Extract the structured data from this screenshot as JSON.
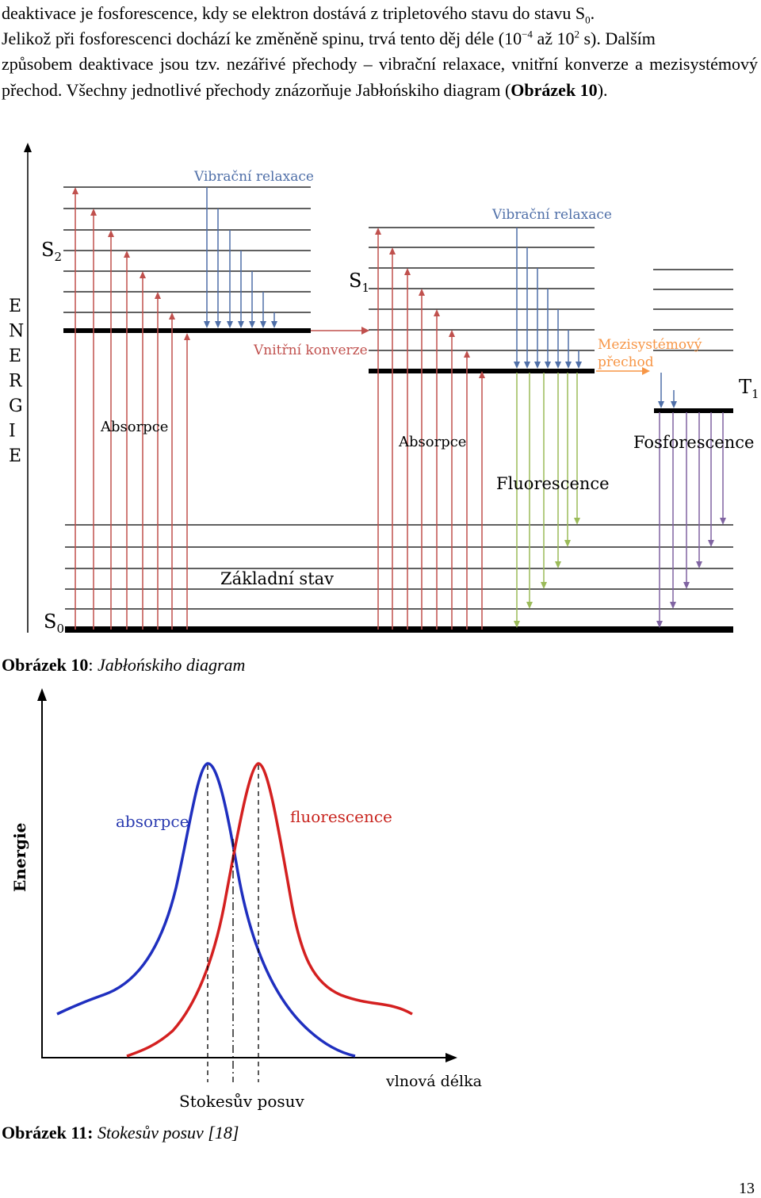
{
  "paragraph": {
    "line1_a": "deaktivace je fosforescence, kdy se elektron dostává z tripletového stavu do stavu S",
    "line1_sub": "0",
    "line1_b": ".",
    "line2_a": "Jelikož při fosforescenci dochází ke změněně spinu, trvá tento děj déle (10",
    "line2_sup1": "−4",
    "line2_b": " až 10",
    "line2_sup2": "2",
    "line2_c": " s). Dalším",
    "rest": "způsobem deaktivace jsou tzv. nezářivé přechody – vibrační relaxace, vnitřní konverze a mezisystémový přechod. Všechny jednotlivé přechody znázorňuje Jabłońskiho diagram (",
    "ref_bold": "Obrázek 10",
    "rest_end": ")."
  },
  "figure10": {
    "caption_label": "Obrázek 10",
    "caption_sep": ": ",
    "caption_text": "Jabłońskiho diagram",
    "axis_label": "ENERGIE",
    "axis_letters": [
      "E",
      "N",
      "E",
      "R",
      "G",
      "I",
      "E"
    ],
    "labels": {
      "s2": "S",
      "s2_sub": "2",
      "s1": "S",
      "s1_sub": "1",
      "s0": "S",
      "s0_sub": "0",
      "t1": "T",
      "t1_sub": "1",
      "vib_relax_1": "Vibrační relaxace",
      "vib_relax_2": "Vibrační relaxace",
      "internal_conv": "Vnitřní konverze",
      "isc_line1": "Mezisystémový",
      "isc_line2": "přechod",
      "absorption_1": "Absorpce",
      "absorption_2": "Absorpce",
      "fluorescence": "Fluorescence",
      "phosphorescence": "Fosforescence",
      "ground_state": "Základní stav"
    },
    "colors": {
      "absorption": "#c0504d",
      "vibrational": "#4f6fa8",
      "fluorescence": "#9bbb59",
      "phosphorescence": "#8064a2",
      "isc": "#f79646",
      "label_blue": "#4f6fa8",
      "label_red": "#c0504d",
      "label_orange": "#f79646"
    }
  },
  "figure11": {
    "caption_label": "Obrázek 11:",
    "caption_text": "Stokesův posuv [18]",
    "y_label": "Energie",
    "x_label": "vlnová délka",
    "absorption_label": "absorpce",
    "fluorescence_label": "fluorescence",
    "shift_label": "Stokesův posuv",
    "colors": {
      "absorption": "#1f2fbf",
      "fluorescence": "#d42020",
      "absorption_text": "#2a3bb0",
      "fluorescence_text": "#c8241e"
    }
  },
  "page_number": "13"
}
